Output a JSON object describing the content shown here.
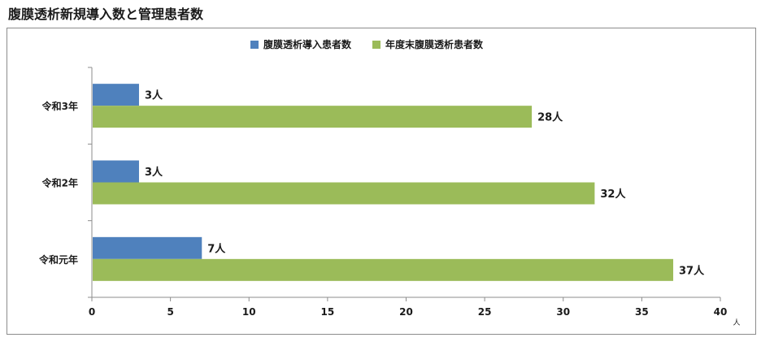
{
  "title": "腹膜透析新規導入数と管理患者数",
  "chart_data": {
    "type": "bar",
    "orientation": "horizontal",
    "categories": [
      "令和3年",
      "令和2年",
      "令和元年"
    ],
    "series": [
      {
        "name": "腹膜透析導入患者数",
        "color": "#4f81bd",
        "values": [
          3,
          3,
          7
        ],
        "labels": [
          "3人",
          "3人",
          "7人"
        ]
      },
      {
        "name": "年度末腹膜透析患者数",
        "color": "#9bbb59",
        "values": [
          28,
          32,
          37
        ],
        "labels": [
          "28人",
          "32人",
          "37人"
        ]
      }
    ],
    "xlim": [
      0,
      40
    ],
    "xticks": [
      "0",
      "5",
      "10",
      "15",
      "20",
      "25",
      "30",
      "35",
      "40"
    ],
    "xunit": "人",
    "legend_position": "top",
    "grid": false
  }
}
